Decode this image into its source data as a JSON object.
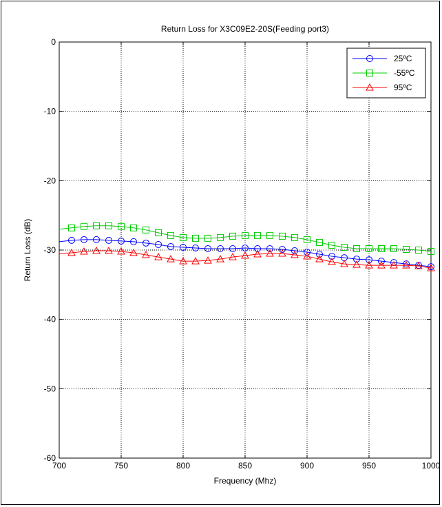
{
  "chart_data": {
    "type": "line",
    "title": "Return Loss for X3C09E2-20S(Feeding port3)",
    "xlabel": "Frequency (Mhz)",
    "ylabel": "Return Loss (dB)",
    "xlim": [
      700,
      1000
    ],
    "ylim": [
      -60,
      0
    ],
    "xticks": [
      700,
      750,
      800,
      850,
      900,
      950,
      1000
    ],
    "yticks": [
      0,
      -10,
      -20,
      -30,
      -40,
      -50,
      -60
    ],
    "grid": true,
    "legend_position": "top-right",
    "x": [
      700,
      710,
      720,
      730,
      740,
      750,
      760,
      770,
      780,
      790,
      800,
      810,
      820,
      830,
      840,
      850,
      860,
      870,
      880,
      890,
      900,
      910,
      920,
      930,
      940,
      950,
      960,
      970,
      980,
      990,
      1000
    ],
    "series": [
      {
        "name": "25ºC",
        "color": "#0000ff",
        "marker": "circle",
        "values": [
          -28.8,
          -28.6,
          -28.5,
          -28.5,
          -28.6,
          -28.7,
          -28.8,
          -29.0,
          -29.2,
          -29.5,
          -29.6,
          -29.7,
          -29.8,
          -29.8,
          -29.8,
          -29.7,
          -29.8,
          -29.8,
          -29.9,
          -30.1,
          -30.3,
          -30.6,
          -30.9,
          -31.1,
          -31.3,
          -31.4,
          -31.6,
          -31.8,
          -32.0,
          -32.2,
          -32.4
        ]
      },
      {
        "name": "-55ºC",
        "color": "#00cc00",
        "marker": "square",
        "values": [
          -27.0,
          -26.8,
          -26.6,
          -26.5,
          -26.5,
          -26.6,
          -26.8,
          -27.1,
          -27.5,
          -27.9,
          -28.2,
          -28.3,
          -28.3,
          -28.2,
          -28.0,
          -27.9,
          -27.9,
          -27.9,
          -28.0,
          -28.2,
          -28.5,
          -28.9,
          -29.3,
          -29.6,
          -29.8,
          -29.8,
          -29.8,
          -29.8,
          -29.9,
          -30.0,
          -30.2
        ]
      },
      {
        "name": "95ºC",
        "color": "#ff0000",
        "marker": "triangle",
        "values": [
          -30.5,
          -30.4,
          -30.2,
          -30.1,
          -30.1,
          -30.2,
          -30.4,
          -30.7,
          -31.0,
          -31.3,
          -31.6,
          -31.6,
          -31.5,
          -31.3,
          -31.0,
          -30.8,
          -30.6,
          -30.5,
          -30.5,
          -30.7,
          -30.9,
          -31.3,
          -31.7,
          -32.0,
          -32.1,
          -32.2,
          -32.2,
          -32.2,
          -32.2,
          -32.3,
          -32.6
        ]
      }
    ]
  }
}
